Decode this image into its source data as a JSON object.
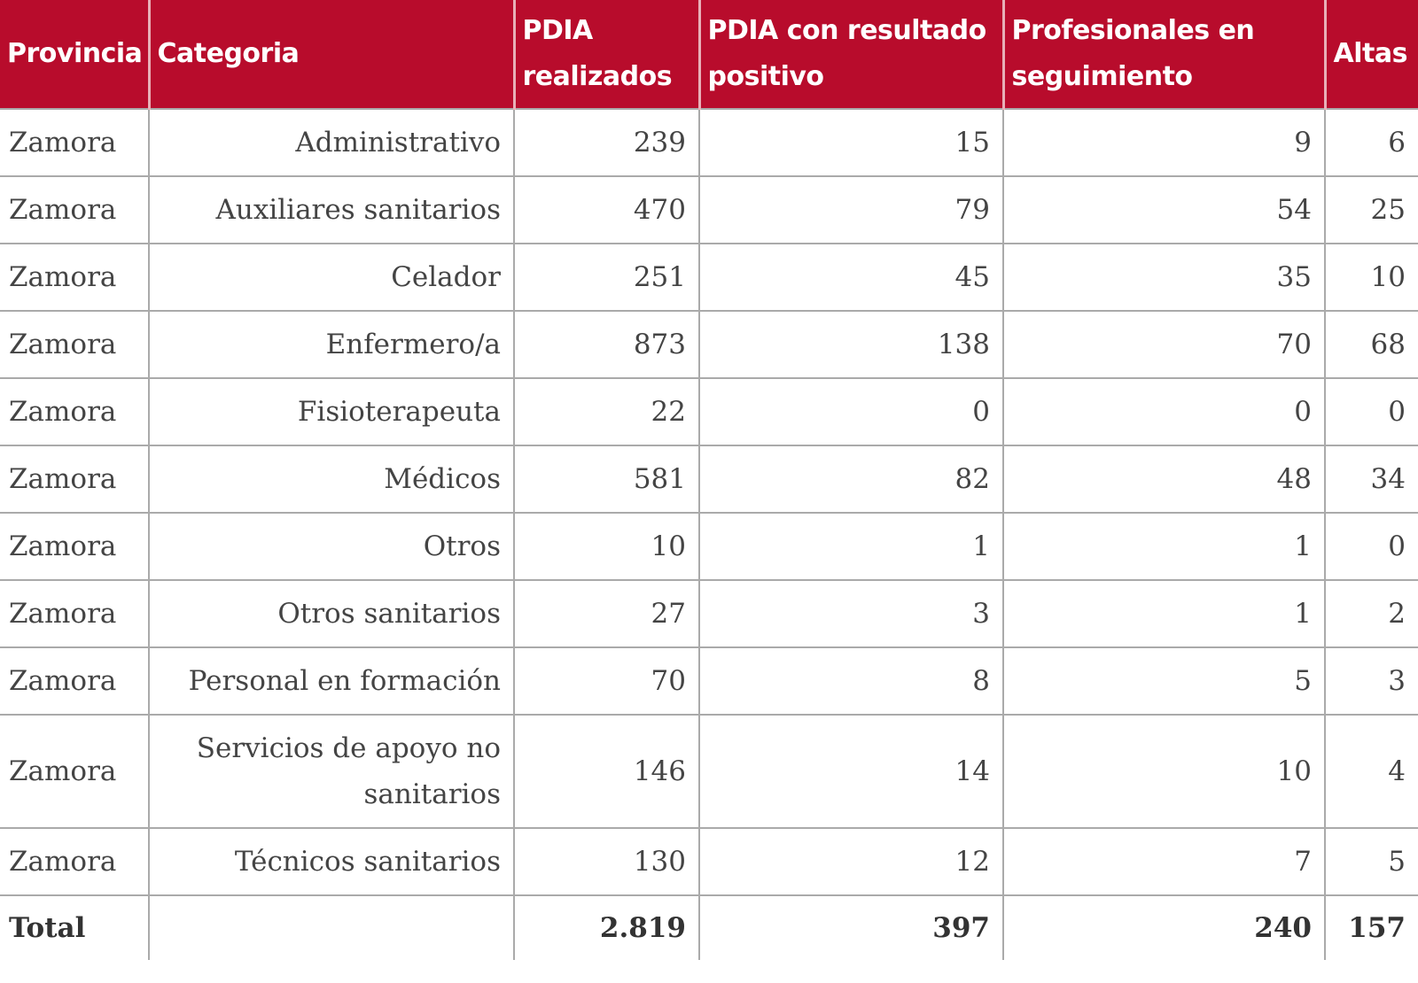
{
  "colors": {
    "header_bg": "#b80c2c",
    "header_text": "#ffffff"
  },
  "headers": [
    "Provincia",
    "Categoria",
    "PDIA realizados",
    "PDIA con resultado positivo",
    "Profesionales en seguimiento",
    "Altas"
  ],
  "rows": [
    [
      "Zamora",
      "Administrativo",
      "239",
      "15",
      "9",
      "6"
    ],
    [
      "Zamora",
      "Auxiliares sanitarios",
      "470",
      "79",
      "54",
      "25"
    ],
    [
      "Zamora",
      "Celador",
      "251",
      "45",
      "35",
      "10"
    ],
    [
      "Zamora",
      "Enfermero/a",
      "873",
      "138",
      "70",
      "68"
    ],
    [
      "Zamora",
      "Fisioterapeuta",
      "22",
      "0",
      "0",
      "0"
    ],
    [
      "Zamora",
      "Médicos",
      "581",
      "82",
      "48",
      "34"
    ],
    [
      "Zamora",
      "Otros",
      "10",
      "1",
      "1",
      "0"
    ],
    [
      "Zamora",
      "Otros sanitarios",
      "27",
      "3",
      "1",
      "2"
    ],
    [
      "Zamora",
      "Personal en formación",
      "70",
      "8",
      "5",
      "3"
    ],
    [
      "Zamora",
      "Servicios de apoyo no sanitarios",
      "146",
      "14",
      "10",
      "4"
    ],
    [
      "Zamora",
      "Técnicos sanitarios",
      "130",
      "12",
      "7",
      "5"
    ]
  ],
  "total": [
    "Total",
    "",
    "2.819",
    "397",
    "240",
    "157"
  ]
}
